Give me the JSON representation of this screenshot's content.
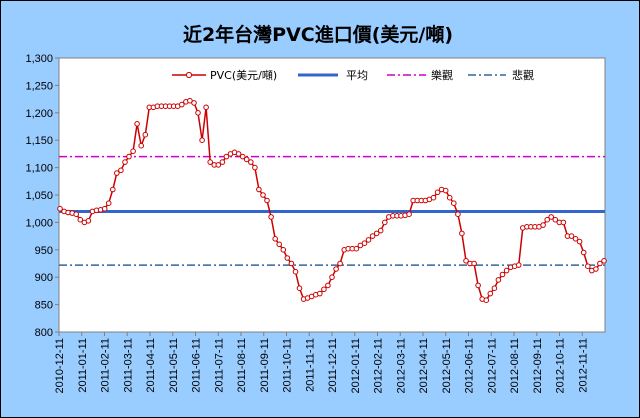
{
  "chart_data": {
    "type": "line",
    "title": "近2年台灣PVC進口價(美元/噸)",
    "ylim": [
      800,
      1300
    ],
    "yticks": [
      800,
      850,
      900,
      950,
      1000,
      1050,
      1100,
      1150,
      1200,
      1250,
      1300
    ],
    "ytick_labels": [
      "800",
      "850",
      "900",
      "950",
      "1,000",
      "1,050",
      "1,100",
      "1,150",
      "1,200",
      "1,250",
      "1,300"
    ],
    "x_tick_labels": [
      "2010-12-11",
      "2011-01-11",
      "2011-02-11",
      "2011-03-11",
      "2011-04-11",
      "2011-05-11",
      "2011-06-11",
      "2011-07-11",
      "2011-08-11",
      "2011-09-11",
      "2011-10-11",
      "2011-11-11",
      "2011-12-11",
      "2012-01-11",
      "2012-02-11",
      "2012-03-11",
      "2012-04-11",
      "2012-05-11",
      "2012-06-11",
      "2012-07-11",
      "2012-08-11",
      "2012-09-11",
      "2012-10-11",
      "2012-11-11"
    ],
    "grid": false,
    "legend_position": "top",
    "colors": {
      "series": "#cc0000",
      "average": "#3366cc",
      "optimistic": "#cc00cc",
      "pessimistic": "#336699",
      "plot_bg": "#ffffff",
      "frame_bg": "#99ccff"
    },
    "series": [
      {
        "name": "PVC(美元/噸)",
        "style": "line-with-circle-markers",
        "values": [
          1025,
          1020,
          1018,
          1017,
          1015,
          1005,
          1000,
          1003,
          1020,
          1022,
          1023,
          1025,
          1035,
          1060,
          1090,
          1095,
          1110,
          1120,
          1130,
          1180,
          1140,
          1160,
          1210,
          1210,
          1212,
          1212,
          1212,
          1212,
          1212,
          1212,
          1215,
          1220,
          1222,
          1218,
          1200,
          1150,
          1210,
          1110,
          1105,
          1105,
          1110,
          1120,
          1125,
          1128,
          1125,
          1120,
          1115,
          1110,
          1100,
          1060,
          1050,
          1040,
          1010,
          970,
          960,
          950,
          935,
          925,
          910,
          880,
          860,
          862,
          865,
          868,
          870,
          878,
          885,
          900,
          915,
          925,
          950,
          952,
          952,
          952,
          958,
          962,
          968,
          975,
          980,
          985,
          1000,
          1010,
          1012,
          1012,
          1012,
          1013,
          1015,
          1040,
          1040,
          1040,
          1040,
          1042,
          1045,
          1055,
          1060,
          1058,
          1045,
          1035,
          1015,
          980,
          930,
          925,
          925,
          885,
          860,
          858,
          870,
          880,
          895,
          905,
          912,
          918,
          920,
          922,
          990,
          992,
          992,
          992,
          992,
          995,
          1005,
          1010,
          1005,
          1000,
          1000,
          975,
          975,
          970,
          965,
          945,
          920,
          912,
          915,
          925,
          930
        ]
      },
      {
        "name": "平均",
        "style": "solid",
        "values": [
          1020
        ]
      },
      {
        "name": "樂觀",
        "style": "dash-dot",
        "values": [
          1120
        ]
      },
      {
        "name": "悲觀",
        "style": "dash-dot",
        "values": [
          922
        ]
      }
    ]
  }
}
